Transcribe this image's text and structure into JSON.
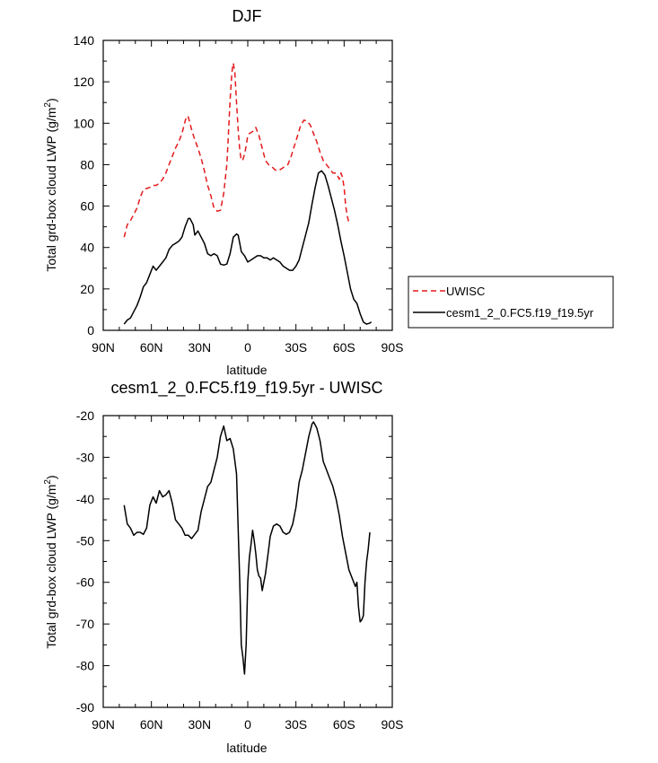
{
  "chart_data": [
    {
      "type": "line",
      "title": "DJF",
      "xlabel": "latitude",
      "ylabel": "Total grd-box cloud LWP (g/m",
      "ylabel_sup": "2",
      "ylabel_close": ")",
      "xlim": [
        90,
        -90
      ],
      "ylim": [
        0,
        140
      ],
      "x_ticks": [
        {
          "value": 90,
          "label": "90N"
        },
        {
          "value": 60,
          "label": "60N"
        },
        {
          "value": 30,
          "label": "30N"
        },
        {
          "value": 0,
          "label": "0"
        },
        {
          "value": -30,
          "label": "30S"
        },
        {
          "value": -60,
          "label": "60S"
        },
        {
          "value": -90,
          "label": "90S"
        }
      ],
      "y_ticks": [
        0,
        20,
        40,
        60,
        80,
        100,
        120,
        140
      ],
      "legend_position": "right",
      "series": [
        {
          "name": "UWISC",
          "color": "#e41a1c",
          "dash": true,
          "points": [
            [
              77,
              45
            ],
            [
              75,
              51
            ],
            [
              73,
              53
            ],
            [
              71,
              56
            ],
            [
              69,
              59
            ],
            [
              67,
              64
            ],
            [
              65,
              68
            ],
            [
              63,
              68.5
            ],
            [
              61,
              69
            ],
            [
              59,
              70
            ],
            [
              57,
              70
            ],
            [
              55,
              71
            ],
            [
              53,
              73
            ],
            [
              51,
              76
            ],
            [
              49,
              80
            ],
            [
              47,
              84
            ],
            [
              45,
              88
            ],
            [
              43,
              91
            ],
            [
              41,
              95
            ],
            [
              39,
              101
            ],
            [
              38,
              103.5
            ],
            [
              37,
              103
            ],
            [
              35,
              97
            ],
            [
              33,
              92
            ],
            [
              31,
              88
            ],
            [
              29,
              83
            ],
            [
              27,
              77
            ],
            [
              25,
              70
            ],
            [
              23,
              65
            ],
            [
              21,
              59
            ],
            [
              19,
              57.5
            ],
            [
              17,
              58
            ],
            [
              15,
              66
            ],
            [
              13,
              80
            ],
            [
              12,
              95
            ],
            [
              11,
              111
            ],
            [
              10,
              123
            ],
            [
              9.5,
              127
            ],
            [
              9,
              129
            ],
            [
              8,
              124
            ],
            [
              7,
              110
            ],
            [
              6,
              97
            ],
            [
              5,
              87
            ],
            [
              4,
              82
            ],
            [
              3,
              82.5
            ],
            [
              2,
              85
            ],
            [
              1,
              89
            ],
            [
              0,
              94
            ],
            [
              -1,
              95
            ],
            [
              -3,
              96
            ],
            [
              -5,
              98
            ],
            [
              -7,
              94
            ],
            [
              -9,
              88
            ],
            [
              -11,
              82
            ],
            [
              -13,
              80
            ],
            [
              -15,
              79
            ],
            [
              -17,
              77.5
            ],
            [
              -19,
              77
            ],
            [
              -21,
              78
            ],
            [
              -23,
              79
            ],
            [
              -25,
              80
            ],
            [
              -27,
              84
            ],
            [
              -29,
              89
            ],
            [
              -31,
              94
            ],
            [
              -33,
              99
            ],
            [
              -35,
              101.5
            ],
            [
              -37,
              101
            ],
            [
              -39,
              99
            ],
            [
              -41,
              95
            ],
            [
              -43,
              91
            ],
            [
              -45,
              86
            ],
            [
              -47,
              82
            ],
            [
              -49,
              80
            ],
            [
              -51,
              78
            ],
            [
              -53,
              76
            ],
            [
              -55,
              76
            ],
            [
              -57,
              73
            ],
            [
              -58,
              76
            ],
            [
              -59,
              74
            ],
            [
              -60,
              69
            ],
            [
              -61,
              60
            ],
            [
              -62,
              55
            ],
            [
              -63,
              52
            ]
          ]
        },
        {
          "name": "cesm1_2_0.FC5.f19_f19.5yr",
          "color": "#000000",
          "dash": false,
          "points": [
            [
              77,
              3
            ],
            [
              75,
              5
            ],
            [
              73,
              6
            ],
            [
              71,
              9
            ],
            [
              69,
              12
            ],
            [
              67,
              16
            ],
            [
              65,
              21
            ],
            [
              63,
              23
            ],
            [
              61,
              27
            ],
            [
              59,
              31
            ],
            [
              57,
              29
            ],
            [
              55,
              31
            ],
            [
              53,
              33
            ],
            [
              51,
              35
            ],
            [
              49,
              39
            ],
            [
              47,
              41
            ],
            [
              45,
              42
            ],
            [
              43,
              43
            ],
            [
              41,
              45
            ],
            [
              39,
              50
            ],
            [
              37,
              54
            ],
            [
              36,
              54
            ],
            [
              34,
              51
            ],
            [
              33,
              46
            ],
            [
              31,
              48
            ],
            [
              29,
              45
            ],
            [
              27,
              42
            ],
            [
              25,
              37
            ],
            [
              23,
              36
            ],
            [
              21,
              37
            ],
            [
              19,
              36
            ],
            [
              17,
              32
            ],
            [
              15,
              31.5
            ],
            [
              13,
              32
            ],
            [
              11,
              37
            ],
            [
              9,
              45
            ],
            [
              7,
              46.5
            ],
            [
              6,
              46
            ],
            [
              5,
              42
            ],
            [
              4,
              38
            ],
            [
              2,
              36
            ],
            [
              0,
              33
            ],
            [
              -2,
              34
            ],
            [
              -4,
              35
            ],
            [
              -6,
              36
            ],
            [
              -8,
              36
            ],
            [
              -10,
              35
            ],
            [
              -12,
              35
            ],
            [
              -14,
              34
            ],
            [
              -16,
              35
            ],
            [
              -18,
              34
            ],
            [
              -20,
              33
            ],
            [
              -22,
              31
            ],
            [
              -24,
              30
            ],
            [
              -26,
              29
            ],
            [
              -28,
              29
            ],
            [
              -30,
              31
            ],
            [
              -32,
              34
            ],
            [
              -34,
              40
            ],
            [
              -36,
              46
            ],
            [
              -38,
              52
            ],
            [
              -40,
              61
            ],
            [
              -42,
              69
            ],
            [
              -44,
              76
            ],
            [
              -46,
              77
            ],
            [
              -48,
              75
            ],
            [
              -50,
              70
            ],
            [
              -52,
              64
            ],
            [
              -54,
              58
            ],
            [
              -56,
              51
            ],
            [
              -58,
              43
            ],
            [
              -60,
              36
            ],
            [
              -62,
              28
            ],
            [
              -64,
              20
            ],
            [
              -66,
              15
            ],
            [
              -68,
              13
            ],
            [
              -70,
              8
            ],
            [
              -72,
              4
            ],
            [
              -74,
              3
            ],
            [
              -76,
              3.5
            ],
            [
              -77,
              4
            ]
          ]
        }
      ]
    },
    {
      "type": "line",
      "title": "cesm1_2_0.FC5.f19_f19.5yr - UWISC",
      "xlabel": "latitude",
      "ylabel": "Total grd-box cloud LWP (g/m",
      "ylabel_sup": "2",
      "ylabel_close": ")",
      "xlim": [
        90,
        -90
      ],
      "ylim": [
        -90,
        -20
      ],
      "x_ticks": [
        {
          "value": 90,
          "label": "90N"
        },
        {
          "value": 60,
          "label": "60N"
        },
        {
          "value": 30,
          "label": "30N"
        },
        {
          "value": 0,
          "label": "0"
        },
        {
          "value": -30,
          "label": "30S"
        },
        {
          "value": -60,
          "label": "60S"
        },
        {
          "value": -90,
          "label": "90S"
        }
      ],
      "y_ticks": [
        -90,
        -80,
        -70,
        -60,
        -50,
        -40,
        -30,
        -20
      ],
      "series": [
        {
          "color": "#000000",
          "dash": false,
          "points": [
            [
              77,
              -41.5
            ],
            [
              75,
              -46
            ],
            [
              73,
              -47
            ],
            [
              71,
              -48.7
            ],
            [
              69,
              -48
            ],
            [
              67,
              -48
            ],
            [
              65,
              -48.5
            ],
            [
              63,
              -47
            ],
            [
              61,
              -41.5
            ],
            [
              59,
              -39.5
            ],
            [
              57,
              -41
            ],
            [
              55,
              -38
            ],
            [
              53,
              -39.5
            ],
            [
              51,
              -39
            ],
            [
              49,
              -38
            ],
            [
              47,
              -41
            ],
            [
              45,
              -45
            ],
            [
              43,
              -46
            ],
            [
              41,
              -47
            ],
            [
              39,
              -48.7
            ],
            [
              37,
              -48.7
            ],
            [
              35,
              -49.5
            ],
            [
              33,
              -48.5
            ],
            [
              31,
              -47.5
            ],
            [
              29,
              -43
            ],
            [
              27,
              -40
            ],
            [
              25,
              -37
            ],
            [
              23,
              -36
            ],
            [
              21,
              -33
            ],
            [
              19,
              -30
            ],
            [
              17,
              -25
            ],
            [
              15,
              -22.5
            ],
            [
              13,
              -26
            ],
            [
              11,
              -25.5
            ],
            [
              9,
              -28
            ],
            [
              7,
              -34
            ],
            [
              6,
              -47
            ],
            [
              5,
              -60
            ],
            [
              4,
              -75
            ],
            [
              3,
              -78
            ],
            [
              2,
              -82
            ],
            [
              1,
              -75
            ],
            [
              0,
              -60
            ],
            [
              -1,
              -54
            ],
            [
              -2,
              -51
            ],
            [
              -3,
              -47.5
            ],
            [
              -4,
              -50
            ],
            [
              -5,
              -53
            ],
            [
              -6,
              -57
            ],
            [
              -7,
              -58.5
            ],
            [
              -8,
              -59
            ],
            [
              -9,
              -62
            ],
            [
              -10,
              -60
            ],
            [
              -11,
              -58
            ],
            [
              -12,
              -55
            ],
            [
              -13,
              -52
            ],
            [
              -14,
              -49
            ],
            [
              -16,
              -46.5
            ],
            [
              -18,
              -46
            ],
            [
              -20,
              -46.5
            ],
            [
              -22,
              -48
            ],
            [
              -24,
              -48.5
            ],
            [
              -26,
              -48
            ],
            [
              -28,
              -46
            ],
            [
              -30,
              -42
            ],
            [
              -32,
              -36
            ],
            [
              -34,
              -33
            ],
            [
              -36,
              -29
            ],
            [
              -38,
              -25
            ],
            [
              -40,
              -22
            ],
            [
              -41,
              -21.5
            ],
            [
              -43,
              -23
            ],
            [
              -45,
              -26
            ],
            [
              -47,
              -31
            ],
            [
              -49,
              -33
            ],
            [
              -51,
              -35
            ],
            [
              -53,
              -37
            ],
            [
              -55,
              -40
            ],
            [
              -57,
              -44
            ],
            [
              -59,
              -49
            ],
            [
              -61,
              -53
            ],
            [
              -63,
              -57
            ],
            [
              -65,
              -59
            ],
            [
              -67,
              -61
            ],
            [
              -68,
              -60
            ],
            [
              -69,
              -66
            ],
            [
              -70,
              -69.5
            ],
            [
              -71,
              -69
            ],
            [
              -72,
              -68
            ],
            [
              -73,
              -60
            ],
            [
              -74,
              -55
            ],
            [
              -75,
              -52
            ],
            [
              -76,
              -48
            ]
          ]
        }
      ]
    }
  ]
}
